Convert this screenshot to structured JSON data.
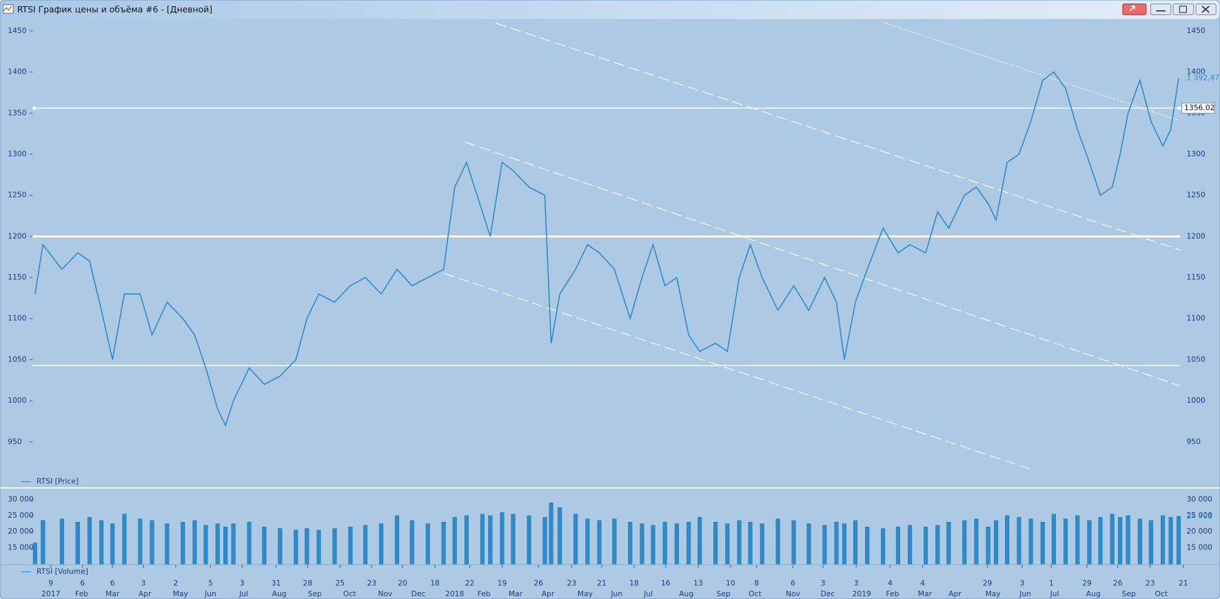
{
  "window": {
    "title": "RTSI График цены и объёма #6 - [Дневной]"
  },
  "chart_data": [
    {
      "type": "line",
      "x": [
        0.3,
        1.3,
        3.7,
        5.7,
        7.2,
        8.7,
        10.1,
        11.6,
        13.6,
        15.1,
        17.0,
        19.0,
        20.5,
        21.9,
        23.4,
        24.4,
        25.4,
        27.4,
        29.3,
        31.3,
        33.3,
        34.7,
        36.2,
        38.2,
        40.2,
        42.1,
        44.1,
        46.1,
        48.0,
        50.0,
        52.0,
        53.4,
        54.9,
        56.9,
        57.9,
        59.4,
        60.8,
        62.8,
        64.8,
        65.6,
        66.7,
        68.7,
        70.2,
        71.7,
        73.6,
        75.6,
        77.1,
        78.5,
        80.0,
        81.5,
        83.0,
        84.4,
        86.4,
        87.9,
        89.4,
        90.8,
        92.3,
        94.3,
        96.3,
        98.2,
        100.2,
        101.7,
        102.7,
        104.1,
        105.6,
        107.6,
        109.5,
        111.0,
        113.0,
        114.5,
        115.9,
        117.9,
        119.4,
        120.9,
        121.9,
        123.3,
        124.8,
        126.3,
        127.8,
        129.2,
        130.7,
        132.2,
        133.7,
        135.1,
        136.6,
        137.6,
        138.6,
        140.1,
        141.5,
        143.0,
        144.0,
        145.0
      ],
      "series": [
        {
          "name": "RTSI [Price]",
          "color": "#2b8bcc",
          "values": [
            1130,
            1190,
            1160,
            1180,
            1170,
            1110,
            1050,
            1130,
            1130,
            1080,
            1120,
            1100,
            1080,
            1040,
            990,
            970,
            1000,
            1040,
            1020,
            1030,
            1050,
            1100,
            1130,
            1120,
            1140,
            1150,
            1130,
            1160,
            1140,
            1150,
            1160,
            1260,
            1290,
            1230,
            1200,
            1290,
            1280,
            1260,
            1250,
            1070,
            1130,
            1160,
            1190,
            1180,
            1160,
            1100,
            1150,
            1190,
            1140,
            1150,
            1080,
            1060,
            1070,
            1060,
            1150,
            1190,
            1150,
            1110,
            1140,
            1110,
            1150,
            1120,
            1050,
            1120,
            1160,
            1210,
            1180,
            1190,
            1180,
            1230,
            1210,
            1250,
            1260,
            1240,
            1220,
            1290,
            1300,
            1340,
            1390,
            1400,
            1380,
            1330,
            1290,
            1250,
            1260,
            1300,
            1350,
            1390,
            1340,
            1310,
            1330,
            1392.47
          ],
          "last_label": "1 392,47"
        }
      ],
      "xlim": [
        0,
        146
      ],
      "ylim": [
        894,
        1464
      ],
      "yticks": [
        950,
        1000,
        1050,
        1100,
        1150,
        1200,
        1250,
        1300,
        1350,
        1400,
        1450
      ],
      "levels": [
        {
          "value": 1356.02,
          "style": "marked"
        },
        {
          "value": 1200,
          "style": "thick"
        },
        {
          "value": 1043,
          "style": "thin"
        }
      ],
      "trend_lines": [
        {
          "x": [
            58.6,
            145.2
          ],
          "y": [
            1459.5,
            1183.5
          ],
          "style": "dashed"
        },
        {
          "x": [
            54.7,
            145.2
          ],
          "y": [
            1314.8,
            1018.1
          ],
          "style": "dashed"
        },
        {
          "x": [
            52.0,
            126.8
          ],
          "y": [
            1155.1,
            915.0
          ],
          "style": "dashed"
        },
        {
          "x": [
            107.6,
            145.0
          ],
          "y": [
            1460.4,
            1341.3
          ],
          "style": "dotted"
        }
      ]
    },
    {
      "type": "bar",
      "x": [
        0.3,
        1.3,
        3.7,
        5.7,
        7.2,
        8.7,
        10.1,
        11.6,
        13.6,
        15.1,
        17.0,
        19.0,
        20.5,
        21.9,
        23.4,
        24.4,
        25.4,
        27.4,
        29.3,
        31.3,
        33.3,
        34.7,
        36.2,
        38.2,
        40.2,
        42.1,
        44.1,
        46.1,
        48.0,
        50.0,
        52.0,
        53.4,
        54.9,
        56.9,
        57.9,
        59.4,
        60.8,
        62.8,
        64.8,
        65.6,
        66.7,
        68.7,
        70.2,
        71.7,
        73.6,
        75.6,
        77.1,
        78.5,
        80.0,
        81.5,
        83.0,
        84.4,
        86.4,
        87.9,
        89.4,
        90.8,
        92.3,
        94.3,
        96.3,
        98.2,
        100.2,
        101.7,
        102.7,
        104.1,
        105.6,
        107.6,
        109.5,
        111.0,
        113.0,
        114.5,
        115.9,
        117.9,
        119.4,
        120.9,
        121.9,
        123.3,
        124.8,
        126.3,
        127.8,
        129.2,
        130.7,
        132.2,
        133.7,
        135.1,
        136.6,
        137.6,
        138.6,
        140.1,
        141.5,
        143.0,
        144.0,
        145.0
      ],
      "series": [
        {
          "name": "RTSI [Volume]",
          "color": "#2b8bcc",
          "values": [
            16500,
            23500,
            24000,
            23000,
            24500,
            23500,
            22500,
            25500,
            24000,
            23500,
            22500,
            23000,
            23500,
            22000,
            22500,
            21500,
            22500,
            23000,
            21500,
            21000,
            20500,
            21000,
            20500,
            21000,
            21500,
            22000,
            22500,
            25000,
            23500,
            22500,
            23000,
            24500,
            25000,
            25500,
            25000,
            26000,
            25500,
            25000,
            24500,
            29000,
            27500,
            25500,
            24000,
            23500,
            24000,
            23000,
            22500,
            22000,
            23000,
            22500,
            23000,
            24500,
            23000,
            22500,
            23500,
            23000,
            22500,
            24000,
            23500,
            22500,
            22000,
            23000,
            22500,
            23500,
            21500,
            21000,
            21500,
            22000,
            21500,
            22000,
            23000,
            23500,
            24000,
            21500,
            23500,
            25000,
            24500,
            24000,
            23000,
            25500,
            24000,
            25000,
            23500,
            24500,
            25500,
            24500,
            25000,
            24000,
            23500,
            25000,
            24500,
            24791
          ],
          "last_label": "24 791"
        }
      ],
      "xlim": [
        0,
        146
      ],
      "ylim": [
        9900,
        32700
      ],
      "yticks": [
        {
          "value": 15000,
          "label": "15 000"
        },
        {
          "value": 20000,
          "label": "20 000"
        },
        {
          "value": 25000,
          "label": "25 000"
        },
        {
          "value": 30000,
          "label": "30 000"
        }
      ],
      "xticks": [
        {
          "value": 2.3,
          "label": "9"
        },
        {
          "value": 6.3,
          "label": "6"
        },
        {
          "value": 10.1,
          "label": "6"
        },
        {
          "value": 14.0,
          "label": "3"
        },
        {
          "value": 18.1,
          "label": "2"
        },
        {
          "value": 22.5,
          "label": "5"
        },
        {
          "value": 26.5,
          "label": "3"
        },
        {
          "value": 30.8,
          "label": "31"
        },
        {
          "value": 34.8,
          "label": "28"
        },
        {
          "value": 38.9,
          "label": "25"
        },
        {
          "value": 42.9,
          "label": "23"
        },
        {
          "value": 46.8,
          "label": "20"
        },
        {
          "value": 50.9,
          "label": "18"
        },
        {
          "value": 55.3,
          "label": "22"
        },
        {
          "value": 59.4,
          "label": "19"
        },
        {
          "value": 64.0,
          "label": "26"
        },
        {
          "value": 68.2,
          "label": "23"
        },
        {
          "value": 72.0,
          "label": "21"
        },
        {
          "value": 76.1,
          "label": "18"
        },
        {
          "value": 80.1,
          "label": "16"
        },
        {
          "value": 84.2,
          "label": "13"
        },
        {
          "value": 88.3,
          "label": "10"
        },
        {
          "value": 91.6,
          "label": "8"
        },
        {
          "value": 96.2,
          "label": "6"
        },
        {
          "value": 100.0,
          "label": "3"
        },
        {
          "value": 104.2,
          "label": "3"
        },
        {
          "value": 108.5,
          "label": "4"
        },
        {
          "value": 112.6,
          "label": "4"
        },
        {
          "value": 120.8,
          "label": "29"
        },
        {
          "value": 125.2,
          "label": "3"
        },
        {
          "value": 128.9,
          "label": "1"
        },
        {
          "value": 133.4,
          "label": "29"
        },
        {
          "value": 137.3,
          "label": "26"
        },
        {
          "value": 141.4,
          "label": "23"
        },
        {
          "value": 145.6,
          "label": "21"
        }
      ],
      "xticks_months": [
        {
          "value": 2.3,
          "label": "2017"
        },
        {
          "value": 6.2,
          "label": "Feb"
        },
        {
          "value": 10.1,
          "label": "Mar"
        },
        {
          "value": 14.2,
          "label": "Apr"
        },
        {
          "value": 18.7,
          "label": "May"
        },
        {
          "value": 22.5,
          "label": "Jun"
        },
        {
          "value": 26.7,
          "label": "Jul"
        },
        {
          "value": 31.2,
          "label": "Aug"
        },
        {
          "value": 35.7,
          "label": "Sep"
        },
        {
          "value": 40.1,
          "label": "Oct"
        },
        {
          "value": 44.6,
          "label": "Nov"
        },
        {
          "value": 48.8,
          "label": "Dec"
        },
        {
          "value": 53.4,
          "label": "2018"
        },
        {
          "value": 57.1,
          "label": "Feb"
        },
        {
          "value": 61.1,
          "label": "Mar"
        },
        {
          "value": 65.2,
          "label": "Apr"
        },
        {
          "value": 69.9,
          "label": "May"
        },
        {
          "value": 73.9,
          "label": "Jun"
        },
        {
          "value": 77.9,
          "label": "Jul"
        },
        {
          "value": 82.7,
          "label": "Aug"
        },
        {
          "value": 87.4,
          "label": "Sep"
        },
        {
          "value": 91.4,
          "label": "Oct"
        },
        {
          "value": 96.2,
          "label": "Nov"
        },
        {
          "value": 100.6,
          "label": "Dec"
        },
        {
          "value": 104.9,
          "label": "2019"
        },
        {
          "value": 108.8,
          "label": "Feb"
        },
        {
          "value": 112.9,
          "label": "Mar"
        },
        {
          "value": 116.7,
          "label": "Apr"
        },
        {
          "value": 121.5,
          "label": "May"
        },
        {
          "value": 125.6,
          "label": "Jun"
        },
        {
          "value": 129.3,
          "label": "Jul"
        },
        {
          "value": 134.2,
          "label": "Aug"
        },
        {
          "value": 138.7,
          "label": "Sep"
        },
        {
          "value": 142.8,
          "label": "Oct"
        }
      ]
    }
  ]
}
